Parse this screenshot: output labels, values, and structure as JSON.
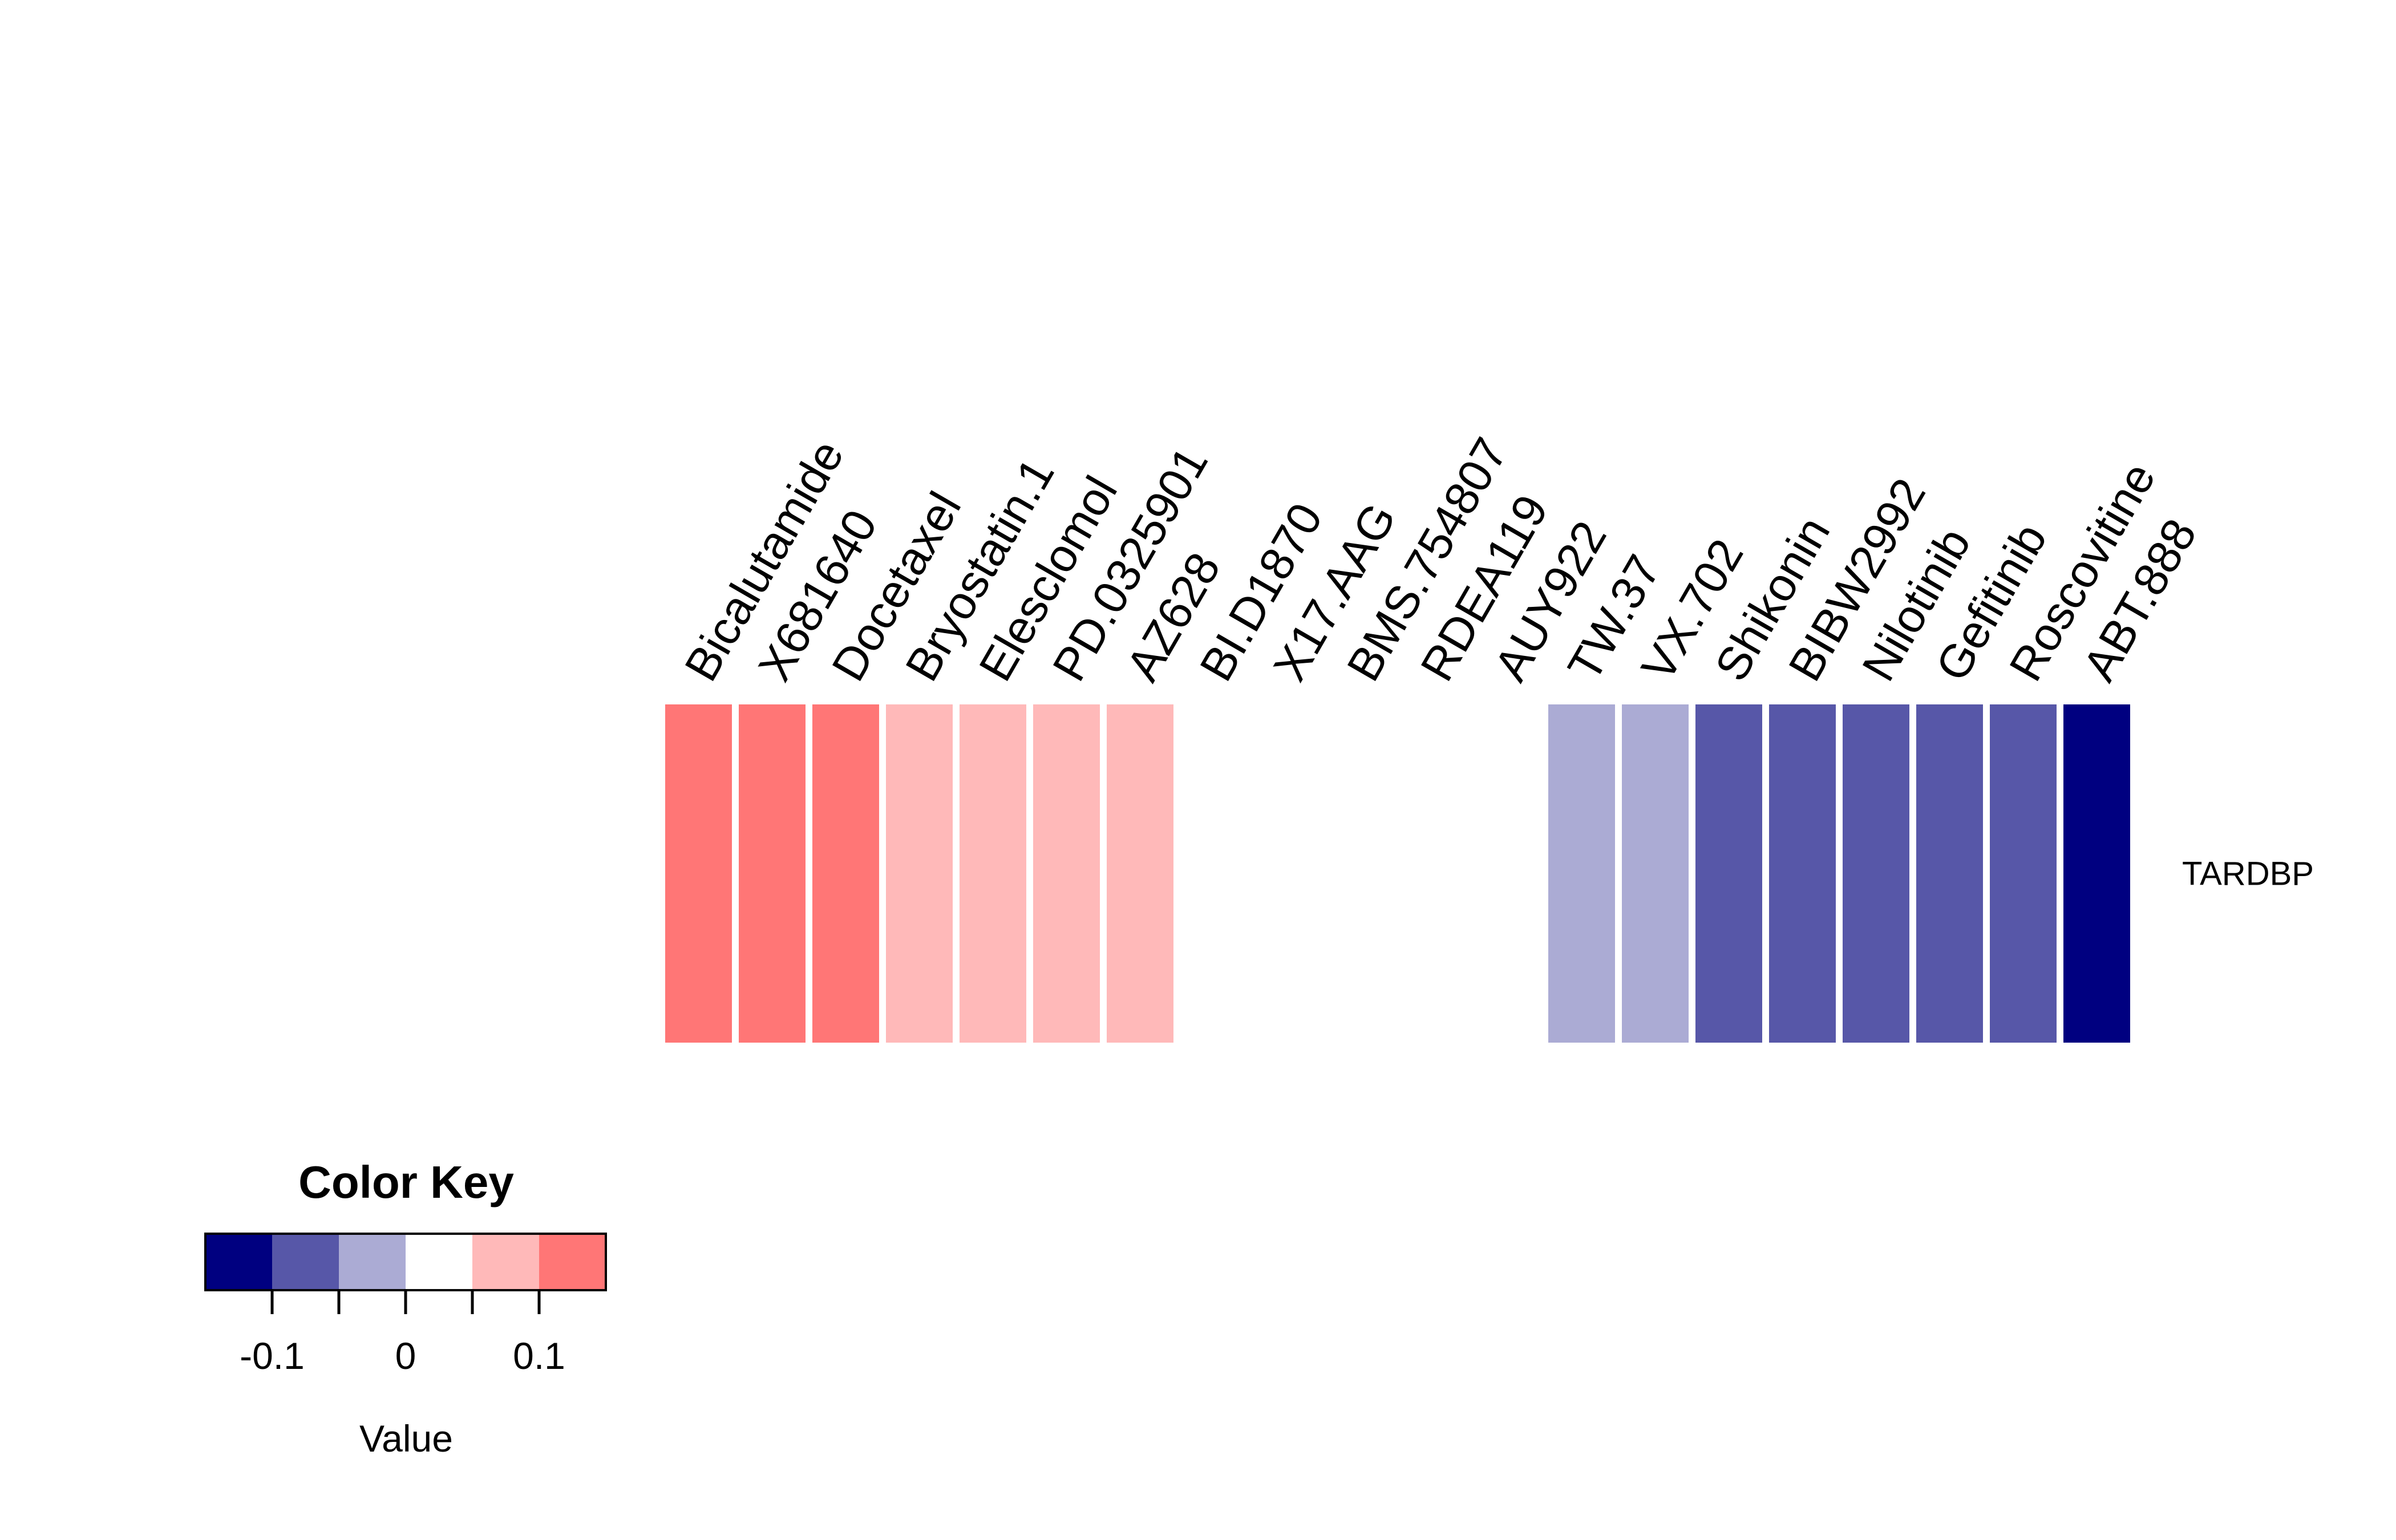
{
  "chart_data": {
    "type": "heatmap",
    "rows": [
      "TARDBP"
    ],
    "columns": [
      "Bicalutamide",
      "X681640",
      "Docetaxel",
      "Bryostatin.1",
      "Elesclomol",
      "PD.0325901",
      "AZ628",
      "BI.D1870",
      "X17.AAG",
      "BMS.754807",
      "RDEA119",
      "AUY922",
      "TW.37",
      "VX.702",
      "Shikonin",
      "BIBW2992",
      "Nilotinib",
      "Gefitinib",
      "Roscovitine",
      "ABT.888"
    ],
    "values": [
      [
        0.13,
        0.13,
        0.13,
        0.08,
        0.08,
        0.08,
        0.08,
        0.03,
        0.03,
        0.03,
        0.03,
        0.03,
        -0.03,
        -0.03,
        -0.08,
        -0.08,
        -0.08,
        -0.08,
        -0.08,
        -0.13
      ]
    ],
    "color_key": {
      "title": "Color Key",
      "xlabel": "Value",
      "range": [
        -0.15,
        0.15
      ],
      "breaks": [
        -0.15,
        -0.1,
        -0.05,
        0,
        0.05,
        0.1,
        0.15
      ],
      "colors": [
        "#000080",
        "#5757a8",
        "#ababd4",
        "#ffffff",
        "#ffb9b9",
        "#ff7676",
        "#ff3333"
      ],
      "ticks": [
        -0.1,
        -0.05,
        0,
        0.05,
        0.1
      ],
      "tick_labels": [
        "-0.1",
        "",
        "0",
        "",
        "0.1"
      ]
    }
  }
}
